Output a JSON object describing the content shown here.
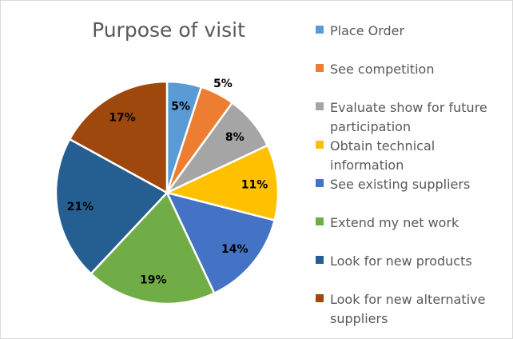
{
  "chart_data": {
    "type": "pie",
    "title": "Purpose of visit",
    "legend_position": "right",
    "categories": [
      "Place Order",
      "See competition",
      "Evaluate show for future participation",
      "Obtain technical information",
      "See existing suppliers",
      "Extend my net work",
      "Look for new products",
      "Look for new alternative suppliers"
    ],
    "values": [
      5,
      5,
      8,
      11,
      14,
      19,
      21,
      17
    ],
    "data_labels": [
      "5%",
      "5%",
      "8%",
      "11%",
      "14%",
      "19%",
      "21%",
      "17%"
    ],
    "colors": [
      "#5B9BD5",
      "#ED7D31",
      "#A5A5A5",
      "#FFC000",
      "#4472C4",
      "#70AD47",
      "#255E91",
      "#9E480E"
    ]
  }
}
